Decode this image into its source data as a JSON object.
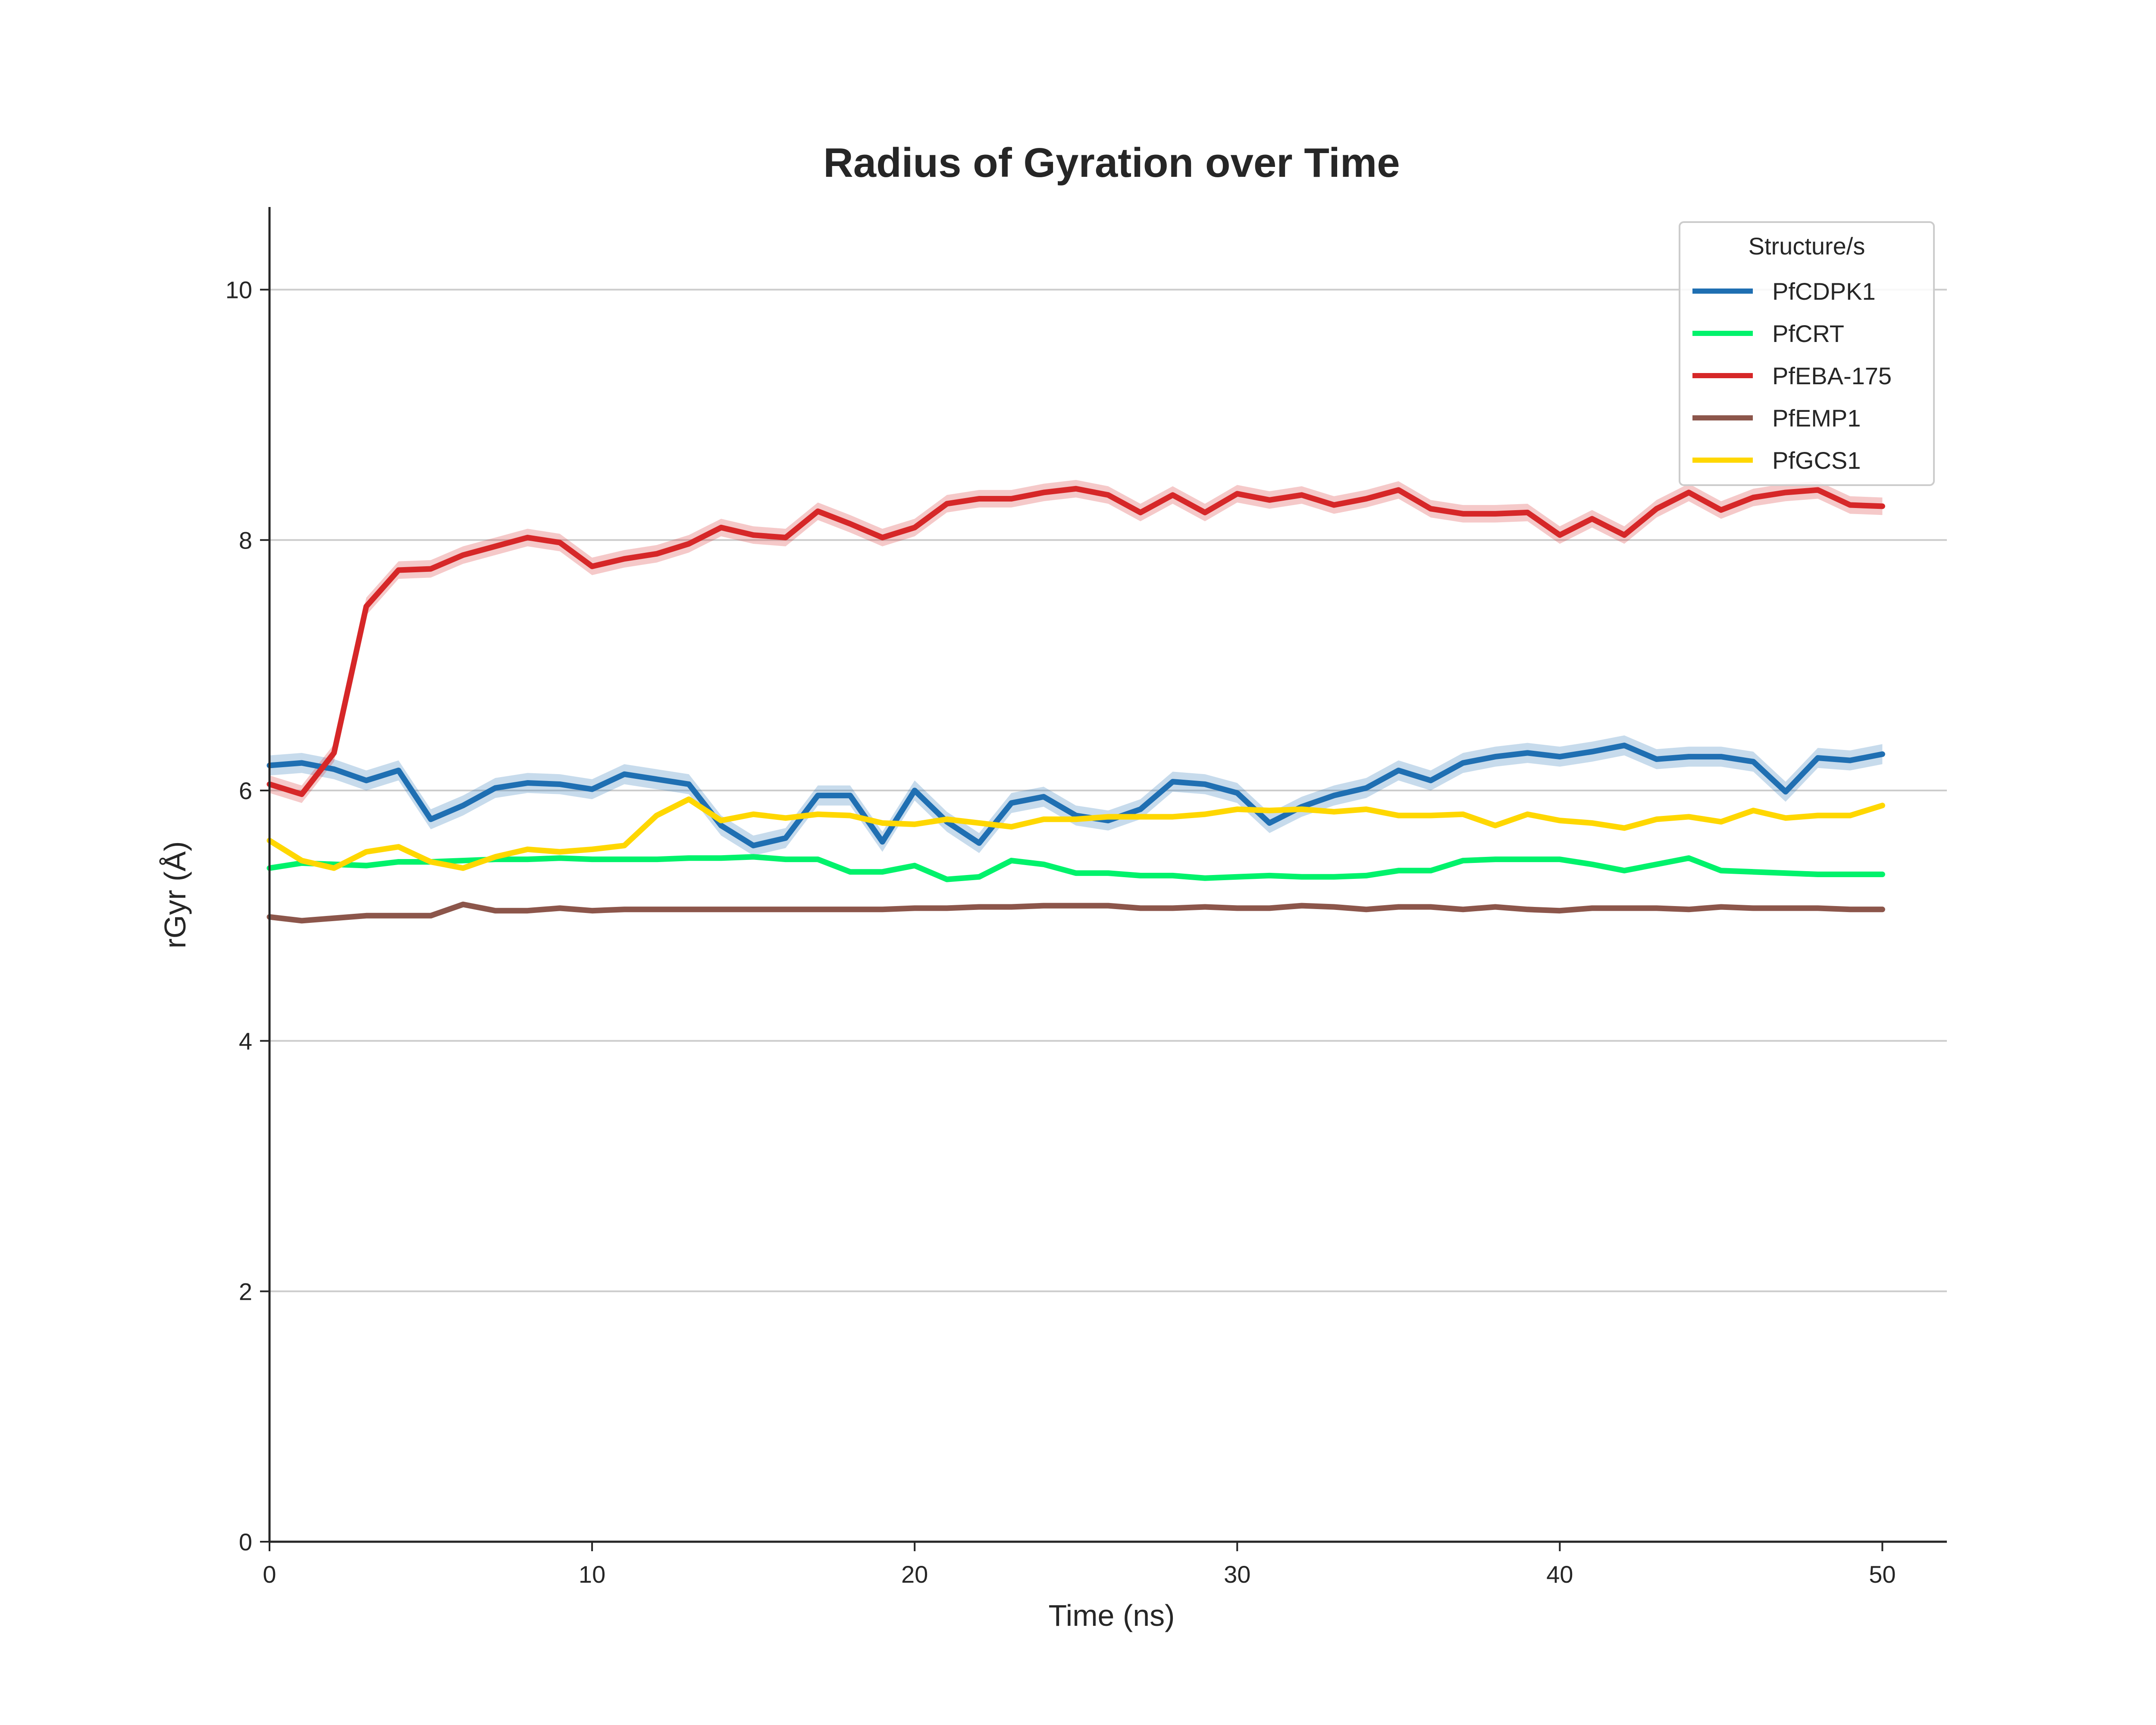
{
  "chart_data": {
    "type": "line",
    "title": "Radius of Gyration over Time",
    "xlabel": "Time (ns)",
    "ylabel": "rGyr (Å)",
    "xlim": [
      0,
      52
    ],
    "ylim": [
      0,
      10.66
    ],
    "xticks": [
      0,
      10,
      20,
      30,
      40,
      50
    ],
    "yticks": [
      0,
      2,
      4,
      6,
      8,
      10
    ],
    "grid": "y",
    "legend": {
      "title": "Structure/s",
      "placement": "top-right"
    },
    "x": [
      0,
      1,
      2,
      3,
      4,
      5,
      6,
      7,
      8,
      9,
      10,
      11,
      12,
      13,
      14,
      15,
      16,
      17,
      18,
      19,
      20,
      21,
      22,
      23,
      24,
      25,
      26,
      27,
      28,
      29,
      30,
      31,
      32,
      33,
      34,
      35,
      36,
      37,
      38,
      39,
      40,
      41,
      42,
      43,
      44,
      45,
      46,
      47,
      48,
      49,
      50
    ],
    "series": [
      {
        "name": "PfCDPK1",
        "color": "#1f6fb2",
        "band": 0.08,
        "values": [
          6.2,
          6.22,
          6.17,
          6.08,
          6.16,
          5.77,
          5.88,
          6.02,
          6.06,
          6.05,
          6.01,
          6.13,
          6.09,
          6.05,
          5.72,
          5.56,
          5.62,
          5.96,
          5.96,
          5.59,
          6.0,
          5.75,
          5.58,
          5.9,
          5.95,
          5.8,
          5.76,
          5.85,
          6.07,
          6.05,
          5.98,
          5.74,
          5.87,
          5.96,
          6.02,
          6.16,
          6.08,
          6.22,
          6.27,
          6.3,
          6.27,
          6.31,
          6.36,
          6.25,
          6.27,
          6.27,
          6.23,
          5.99,
          6.26,
          6.24,
          6.29
        ]
      },
      {
        "name": "PfCRT",
        "color": "#00f26b",
        "band": 0.02,
        "values": [
          5.38,
          5.42,
          5.41,
          5.4,
          5.43,
          5.43,
          5.44,
          5.45,
          5.45,
          5.46,
          5.45,
          5.45,
          5.45,
          5.46,
          5.46,
          5.47,
          5.45,
          5.45,
          5.35,
          5.35,
          5.4,
          5.29,
          5.31,
          5.44,
          5.41,
          5.34,
          5.34,
          5.32,
          5.32,
          5.3,
          5.31,
          5.32,
          5.31,
          5.31,
          5.32,
          5.36,
          5.36,
          5.44,
          5.45,
          5.45,
          5.45,
          5.41,
          5.36,
          5.41,
          5.46,
          5.36,
          5.35,
          5.34,
          5.33,
          5.33,
          5.33
        ]
      },
      {
        "name": "PfEBA-175",
        "color": "#d62728",
        "band": 0.07,
        "values": [
          6.05,
          5.97,
          6.3,
          7.47,
          7.76,
          7.77,
          7.88,
          7.95,
          8.02,
          7.98,
          7.79,
          7.85,
          7.89,
          7.97,
          8.1,
          8.04,
          8.02,
          8.23,
          8.13,
          8.02,
          8.1,
          8.29,
          8.33,
          8.33,
          8.38,
          8.41,
          8.36,
          8.22,
          8.36,
          8.22,
          8.37,
          8.32,
          8.36,
          8.28,
          8.33,
          8.4,
          8.25,
          8.21,
          8.21,
          8.22,
          8.04,
          8.17,
          8.04,
          8.25,
          8.38,
          8.24,
          8.34,
          8.38,
          8.4,
          8.28,
          8.27
        ]
      },
      {
        "name": "PfEMP1",
        "color": "#8c564b",
        "band": 0.01,
        "values": [
          4.99,
          4.96,
          4.98,
          5.0,
          5.0,
          5.0,
          5.09,
          5.04,
          5.04,
          5.06,
          5.04,
          5.05,
          5.05,
          5.05,
          5.05,
          5.05,
          5.05,
          5.05,
          5.05,
          5.05,
          5.06,
          5.06,
          5.07,
          5.07,
          5.08,
          5.08,
          5.08,
          5.06,
          5.06,
          5.07,
          5.06,
          5.06,
          5.08,
          5.07,
          5.05,
          5.07,
          5.07,
          5.05,
          5.07,
          5.05,
          5.04,
          5.06,
          5.06,
          5.06,
          5.05,
          5.07,
          5.06,
          5.06,
          5.06,
          5.05,
          5.05
        ]
      },
      {
        "name": "PfGCS1",
        "color": "#ffd700",
        "band": 0.02,
        "values": [
          5.6,
          5.44,
          5.38,
          5.51,
          5.55,
          5.43,
          5.38,
          5.47,
          5.53,
          5.51,
          5.53,
          5.56,
          5.8,
          5.93,
          5.76,
          5.81,
          5.78,
          5.81,
          5.8,
          5.74,
          5.73,
          5.77,
          5.74,
          5.71,
          5.77,
          5.77,
          5.79,
          5.79,
          5.79,
          5.81,
          5.85,
          5.84,
          5.85,
          5.83,
          5.85,
          5.8,
          5.8,
          5.81,
          5.72,
          5.81,
          5.76,
          5.74,
          5.7,
          5.77,
          5.79,
          5.75,
          5.84,
          5.78,
          5.8,
          5.8,
          5.88
        ]
      }
    ]
  }
}
